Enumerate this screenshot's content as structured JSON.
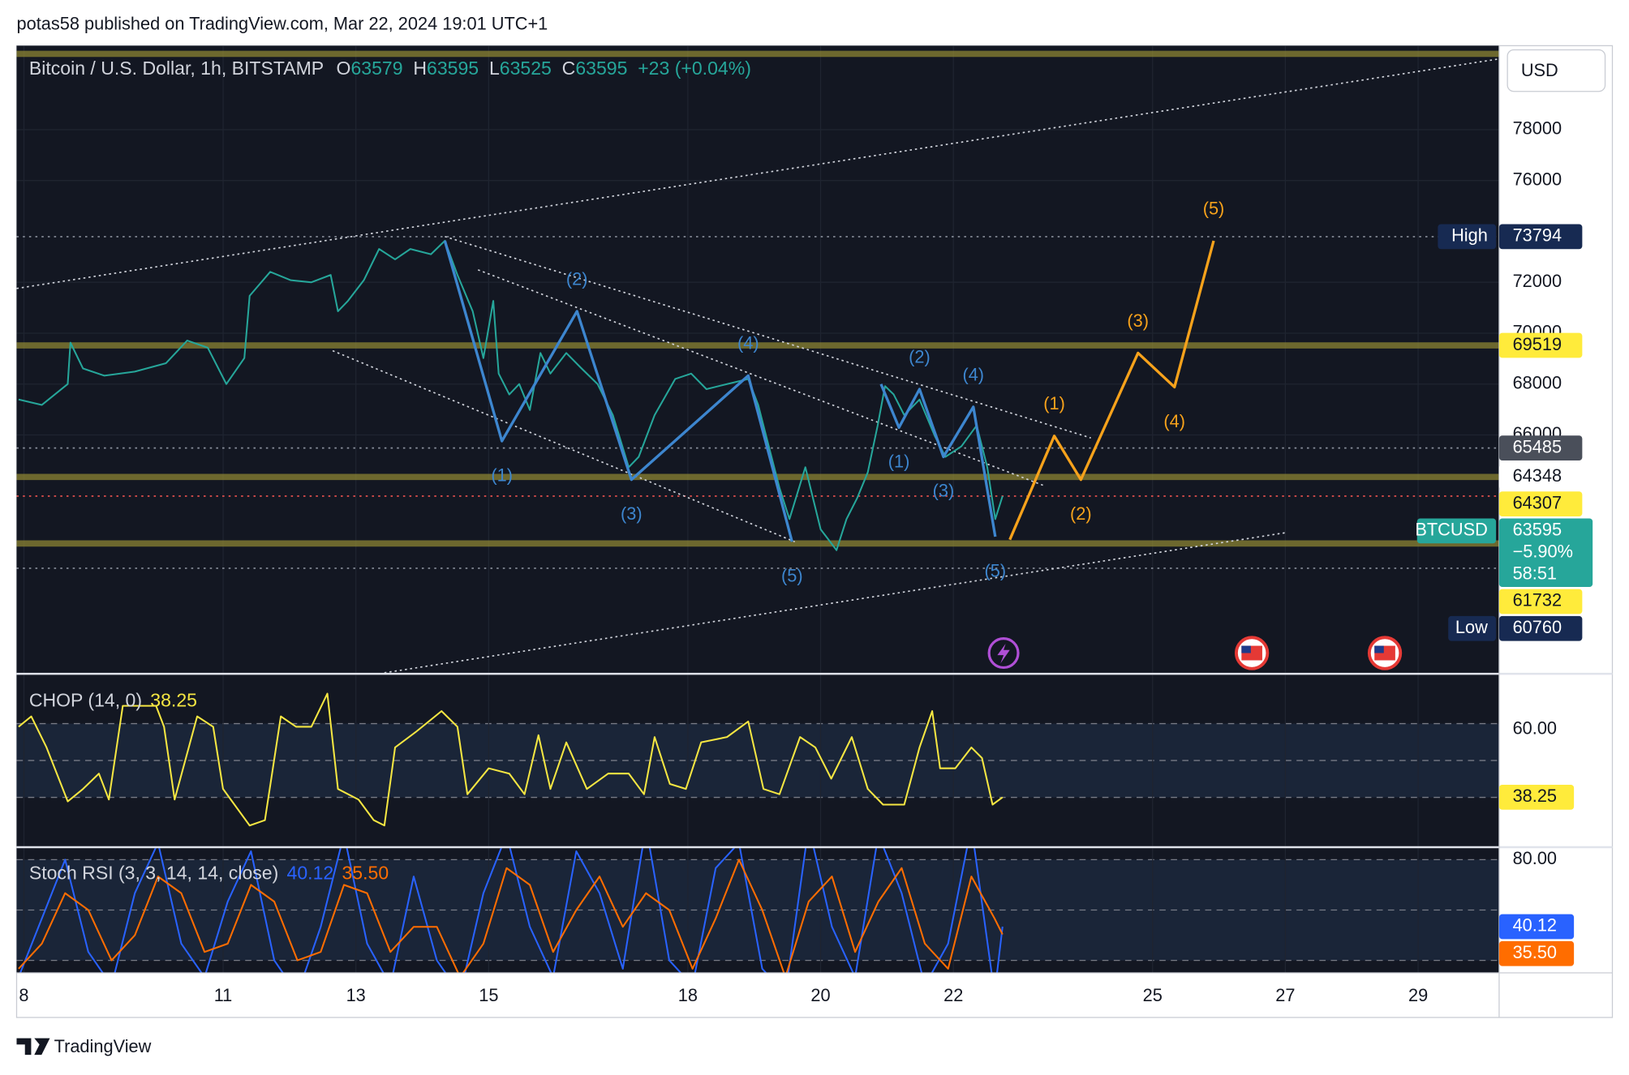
{
  "header": {
    "text": "potas58 published on TradingView.com, Mar 22, 2024 19:01 UTC+1"
  },
  "footer": {
    "brand": "TradingView"
  },
  "chart_data": [
    {
      "type": "line",
      "currency": "USD",
      "legend": {
        "symbol": "Bitcoin / U.S. Dollar, 1h, BITSTAMP",
        "o_label": "O",
        "open": 63579,
        "h_label": "H",
        "high": 63595,
        "l_label": "L",
        "low": 63525,
        "c_label": "C",
        "close": 63595,
        "change": "+23 (+0.04%)"
      },
      "color": "#26a69a",
      "x": [
        7.92,
        8.27,
        8.66,
        8.7,
        8.89,
        9.21,
        9.67,
        10.14,
        10.46,
        10.77,
        11.05,
        11.32,
        11.4,
        11.71,
        12.02,
        12.33,
        12.62,
        12.73,
        12.88,
        13.12,
        13.35,
        13.59,
        13.82,
        14.13,
        14.34,
        14.53,
        14.76,
        14.92,
        15.07,
        15.15,
        15.31,
        15.46,
        15.62,
        15.78,
        15.93,
        16.17,
        16.4,
        16.64,
        16.87,
        17.11,
        17.26,
        17.5,
        17.81,
        18.05,
        18.28,
        18.59,
        18.91,
        19.06,
        19.22,
        19.38,
        19.53,
        19.77,
        20.0,
        20.24,
        20.39,
        20.55,
        20.71,
        20.86,
        20.97,
        21.1,
        21.26,
        21.49,
        21.72,
        21.88,
        22.12,
        22.35,
        22.51,
        22.63,
        22.74
      ],
      "values": [
        67390,
        67180,
        68000,
        69630,
        68610,
        68330,
        68490,
        68820,
        69710,
        69430,
        68000,
        69020,
        71470,
        72410,
        72080,
        72000,
        72290,
        70860,
        71270,
        72080,
        73310,
        72900,
        73310,
        73100,
        73630,
        72290,
        70860,
        69020,
        71270,
        68410,
        67590,
        68000,
        66980,
        69220,
        68410,
        69220,
        68610,
        68000,
        66780,
        64730,
        65140,
        66780,
        68200,
        68410,
        67800,
        68000,
        68200,
        67180,
        65550,
        63920,
        62690,
        64730,
        62290,
        61470,
        62690,
        63510,
        64530,
        66370,
        67920,
        67590,
        66780,
        67390,
        65960,
        65140,
        65550,
        66370,
        64730,
        62690,
        63595
      ],
      "xlim": [
        7.89,
        30.22
      ],
      "xticks": [
        8,
        11,
        13,
        15,
        18,
        20,
        22,
        25,
        27,
        29
      ],
      "ylim": [
        56650,
        81300
      ],
      "yticks": [
        66000,
        68000,
        70000,
        72000,
        76000,
        78000
      ],
      "grid": true,
      "hlines": [
        {
          "value": 80980,
          "style": "band"
        },
        {
          "value": 69519,
          "style": "band"
        },
        {
          "value": 64348,
          "style": "band"
        },
        {
          "value": 61732,
          "style": "band"
        },
        {
          "value": 73794,
          "style": "dotted",
          "color": "#8a909c"
        },
        {
          "value": 65485,
          "style": "dotted",
          "color": "#8a909c"
        },
        {
          "value": 60760,
          "style": "dotted",
          "color": "#8a909c"
        },
        {
          "value": 63595,
          "style": "dotted",
          "color": "#ef5350"
        }
      ],
      "trendlines": [
        {
          "x": [
            7.89,
            30.22
          ],
          "values": [
            71760,
            80780
          ]
        },
        {
          "x": [
            14.34,
            24.07
          ],
          "values": [
            73800,
            65880
          ]
        },
        {
          "x": [
            14.84,
            23.37
          ],
          "values": [
            72490,
            64000
          ]
        },
        {
          "x": [
            12.65,
            19.61
          ],
          "values": [
            69310,
            61800
          ]
        },
        {
          "x": [
            13.43,
            27.01
          ],
          "values": [
            56650,
            62160
          ]
        }
      ],
      "waves": [
        {
          "color": "#3d86cf",
          "x": [
            14.34,
            15.2,
            16.33,
            17.15,
            18.91,
            19.57
          ],
          "values": [
            73630,
            65760,
            70860,
            64240,
            68330,
            61800
          ],
          "labels": [
            null,
            "(1)",
            "(2)",
            "(3)",
            "(4)",
            "(5)"
          ]
        },
        {
          "color": "#3d86cf",
          "x": [
            20.91,
            21.18,
            21.49,
            21.85,
            22.3,
            22.63
          ],
          "values": [
            68000,
            66290,
            67800,
            65140,
            67100,
            62000
          ],
          "labels": [
            null,
            "(1)",
            "(2)",
            "(3)",
            "(4)",
            "(5)"
          ]
        },
        {
          "color": "#f7a21b",
          "x": [
            22.85,
            23.52,
            23.92,
            24.78,
            25.33,
            25.92
          ],
          "values": [
            61880,
            65960,
            64240,
            69220,
            67880,
            73630
          ],
          "labels": [
            null,
            "(1)",
            "(2)",
            "(3)",
            "(4)",
            "(5)"
          ]
        }
      ],
      "price_labels": [
        {
          "value": 73794,
          "title": "High",
          "bg": "#172a52",
          "fg": "#ffffff"
        },
        {
          "value": 69519,
          "bg": "#ffeb3b",
          "fg": "#131722"
        },
        {
          "value": 65485,
          "bg": "#4a4f5a",
          "fg": "#ffffff"
        },
        {
          "value": 64348,
          "bg": "#ffffff",
          "fg": "#131722"
        },
        {
          "value": 64307,
          "bg": "#ffeb3b",
          "fg": "#131722"
        },
        {
          "value": 63595,
          "title": "BTCUSD",
          "change": "−5.90%",
          "countdown": "58:51",
          "bg": "#26a69a",
          "fg": "#ffffff"
        },
        {
          "value": 61732,
          "bg": "#ffeb3b",
          "fg": "#131722"
        },
        {
          "value": 60760,
          "title": "Low",
          "bg": "#172a52",
          "fg": "#ffffff"
        }
      ]
    },
    {
      "type": "line",
      "title": "CHOP (14, 0)",
      "color": "#f5e642",
      "x": [
        7.92,
        8.11,
        8.34,
        8.66,
        8.89,
        9.13,
        9.28,
        9.49,
        9.99,
        10.11,
        10.27,
        10.61,
        10.85,
        11.0,
        11.4,
        11.63,
        11.87,
        12.1,
        12.33,
        12.57,
        12.73,
        13.04,
        13.27,
        13.43,
        13.59,
        13.9,
        14.29,
        14.53,
        14.68,
        15.0,
        15.31,
        15.54,
        15.75,
        15.93,
        16.17,
        16.48,
        16.8,
        17.11,
        17.34,
        17.5,
        17.73,
        17.97,
        18.2,
        18.59,
        18.91,
        19.14,
        19.38,
        19.69,
        19.92,
        20.16,
        20.47,
        20.71,
        20.94,
        21.26,
        21.49,
        21.68,
        21.8,
        22.03,
        22.27,
        22.43,
        22.59,
        22.74
      ],
      "values": [
        60.8,
        64.1,
        54.2,
        36.9,
        40.9,
        45.8,
        37.5,
        67.5,
        67.5,
        60.8,
        37.5,
        64.1,
        60.8,
        40.9,
        29.2,
        30.9,
        64.1,
        60.8,
        60.8,
        71.4,
        40.9,
        37.5,
        30.9,
        29.2,
        54.2,
        59.1,
        65.8,
        60.8,
        39.2,
        47.5,
        45.8,
        39.2,
        58.1,
        40.9,
        55.8,
        40.9,
        45.8,
        45.8,
        39.2,
        57.5,
        42.5,
        40.9,
        55.8,
        57.5,
        62.5,
        40.9,
        39.2,
        57.5,
        54.2,
        44.2,
        57.5,
        40.9,
        35.9,
        35.9,
        54.2,
        65.8,
        47.5,
        47.5,
        54.2,
        50.8,
        35.9,
        38.25
      ],
      "ylim": [
        22.6,
        77.4
      ],
      "yticks": [
        {
          "value": 60,
          "label": "60.00"
        }
      ],
      "bands": [
        61.8,
        50,
        38.2
      ],
      "band_fill": "#1a2538",
      "badge_bg": "#ffeb3b"
    },
    {
      "type": "line",
      "title": "Stoch RSI (3, 3, 14, 14, close)",
      "x": [
        7.92,
        8.27,
        8.62,
        8.97,
        9.32,
        9.67,
        10.02,
        10.37,
        10.72,
        11.07,
        11.42,
        11.77,
        12.12,
        12.47,
        12.82,
        13.17,
        13.52,
        13.87,
        14.22,
        14.57,
        14.92,
        15.27,
        15.62,
        15.97,
        16.32,
        16.67,
        17.02,
        17.37,
        17.72,
        18.07,
        18.42,
        18.77,
        19.12,
        19.47,
        19.82,
        20.17,
        20.52,
        20.87,
        21.22,
        21.57,
        21.92,
        22.27,
        22.62,
        22.74
      ],
      "series": [
        {
          "color": "#2962ff",
          "values": [
            10,
            45,
            80,
            25,
            5,
            60,
            90,
            30,
            10,
            55,
            85,
            20,
            0,
            40,
            95,
            30,
            5,
            70,
            20,
            0,
            60,
            95,
            40,
            10,
            85,
            60,
            15,
            100,
            20,
            5,
            75,
            90,
            15,
            0,
            100,
            40,
            10,
            95,
            60,
            5,
            30,
            100,
            0,
            40.12
          ]
        },
        {
          "color": "#ff6d00",
          "values": [
            15,
            30,
            60,
            50,
            20,
            35,
            70,
            60,
            25,
            30,
            65,
            55,
            20,
            25,
            65,
            60,
            25,
            40,
            40,
            10,
            30,
            75,
            65,
            25,
            50,
            70,
            40,
            60,
            50,
            15,
            45,
            80,
            50,
            10,
            55,
            70,
            25,
            55,
            75,
            30,
            15,
            70,
            45,
            35.5
          ],
          "value_labels": [
            null,
            null,
            null,
            null,
            null,
            null,
            null,
            null,
            null,
            null,
            null,
            null,
            null,
            null,
            null,
            null,
            null,
            null,
            null,
            null,
            null,
            null,
            null,
            null,
            null,
            null,
            null,
            null,
            null,
            null,
            null,
            null,
            null,
            null,
            null,
            null,
            null,
            null,
            null,
            null,
            null,
            null,
            null,
            "35.50"
          ]
        }
      ],
      "ylim": [
        12.6,
        86.8
      ],
      "yticks": [
        {
          "value": 80,
          "label": "80.00"
        }
      ],
      "bands": [
        80,
        50,
        20
      ],
      "band_fill": "#1a2538"
    }
  ]
}
